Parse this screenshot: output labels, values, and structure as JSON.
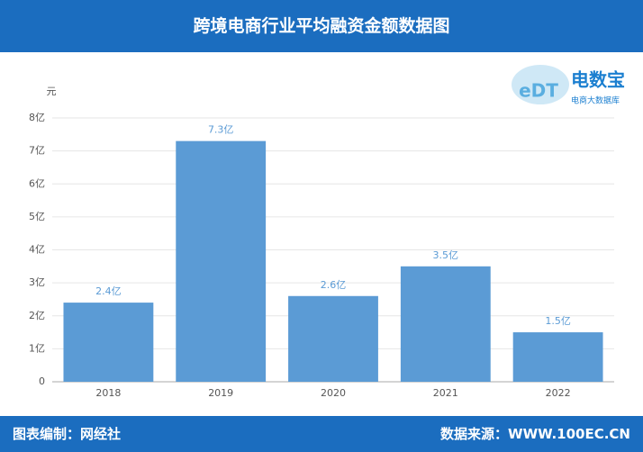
{
  "header": {
    "title": "跨境电商行业平均融资金额数据图"
  },
  "logo": {
    "mark": "eDT",
    "name": "电数宝",
    "tagline": "电商大数据库"
  },
  "chart_data": {
    "type": "bar",
    "y_unit": "元",
    "categories": [
      "2018",
      "2019",
      "2020",
      "2021",
      "2022"
    ],
    "values": [
      2.4,
      7.3,
      2.6,
      3.5,
      1.5
    ],
    "value_labels": [
      "2.4亿",
      "7.3亿",
      "2.6亿",
      "3.5亿",
      "1.5亿"
    ],
    "color": "#5b9bd5",
    "ylim": [
      0,
      8
    ],
    "yticks": [
      0,
      {
        "value": 1,
        "label": "1亿"
      },
      {
        "value": 2,
        "label": "2亿"
      },
      {
        "value": 3,
        "label": "3亿"
      },
      {
        "value": 4,
        "label": "4亿"
      },
      {
        "value": 5,
        "label": "5亿"
      },
      {
        "value": 6,
        "label": "6亿"
      },
      {
        "value": 7,
        "label": "7亿"
      },
      {
        "value": 8,
        "label": "8亿"
      }
    ],
    "grid": true
  },
  "footer": {
    "left": "图表编制：网经社",
    "right": "数据来源：WWW.100EC.CN"
  }
}
